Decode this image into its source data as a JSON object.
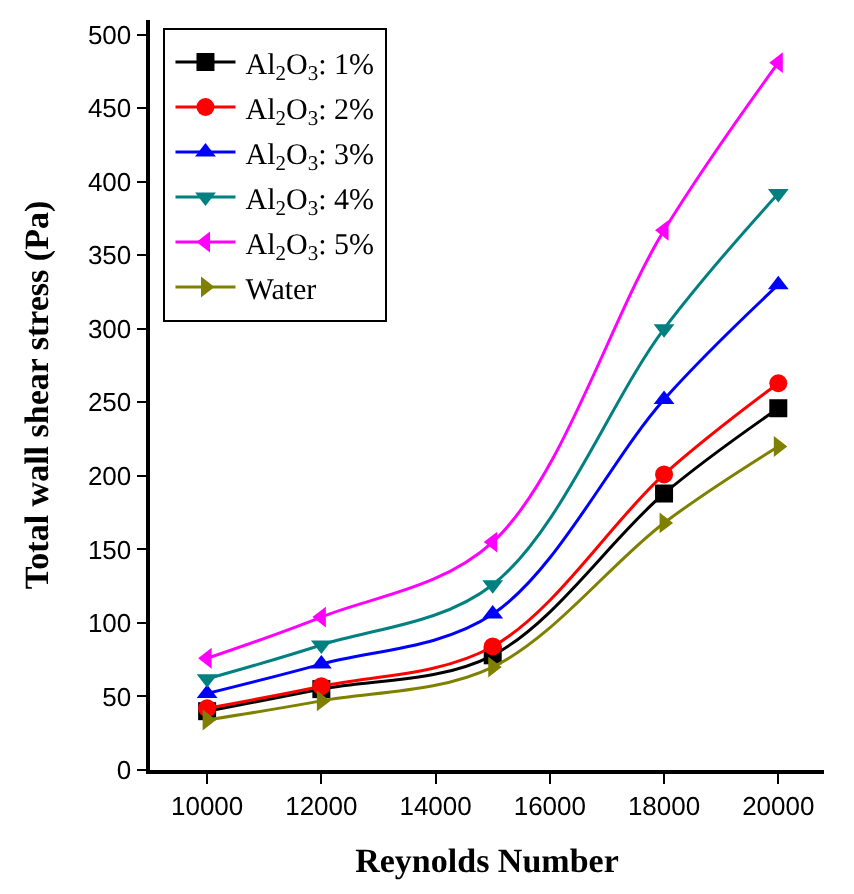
{
  "chart_data": {
    "type": "line",
    "xlabel": "Reynolds Number",
    "ylabel": "Total wall shear stress (Pa)",
    "x": [
      10000,
      12000,
      15000,
      18000,
      20000
    ],
    "xlim": [
      9000,
      20800
    ],
    "xticks": [
      10000,
      12000,
      14000,
      16000,
      18000,
      20000
    ],
    "ylim": [
      0,
      510
    ],
    "yticks": [
      0,
      50,
      100,
      150,
      200,
      250,
      300,
      350,
      400,
      450,
      500
    ],
    "legend": "top left",
    "line_style": "solid",
    "series": [
      {
        "name": "Al$_{2}$O$_{3}$: 1%",
        "color": "#000000",
        "marker": "square",
        "values": [
          40,
          55,
          78,
          188,
          246
        ]
      },
      {
        "name": "Al$_{2}$O$_{3}$: 2%",
        "color": "#ff0000",
        "marker": "circle",
        "values": [
          42,
          57,
          84,
          201,
          263
        ]
      },
      {
        "name": "Al$_{2}$O$_{3}$: 3%",
        "color": "#0000ff",
        "marker": "triangle",
        "values": [
          52,
          72,
          106,
          252,
          330
        ]
      },
      {
        "name": "Al$_{2}$O$_{3}$: 4%",
        "color": "#008080",
        "marker": "triangle-down",
        "values": [
          62,
          85,
          126,
          300,
          392
        ]
      },
      {
        "name": "Al$_{2}$O$_{3}$: 5%",
        "color": "#ff00ff",
        "marker": "triangle-left",
        "values": [
          76,
          104,
          155,
          367,
          481
        ]
      },
      {
        "name": "Water",
        "color": "#808000",
        "marker": "triangle-right",
        "values": [
          34,
          47,
          70,
          168,
          220
        ]
      }
    ]
  }
}
